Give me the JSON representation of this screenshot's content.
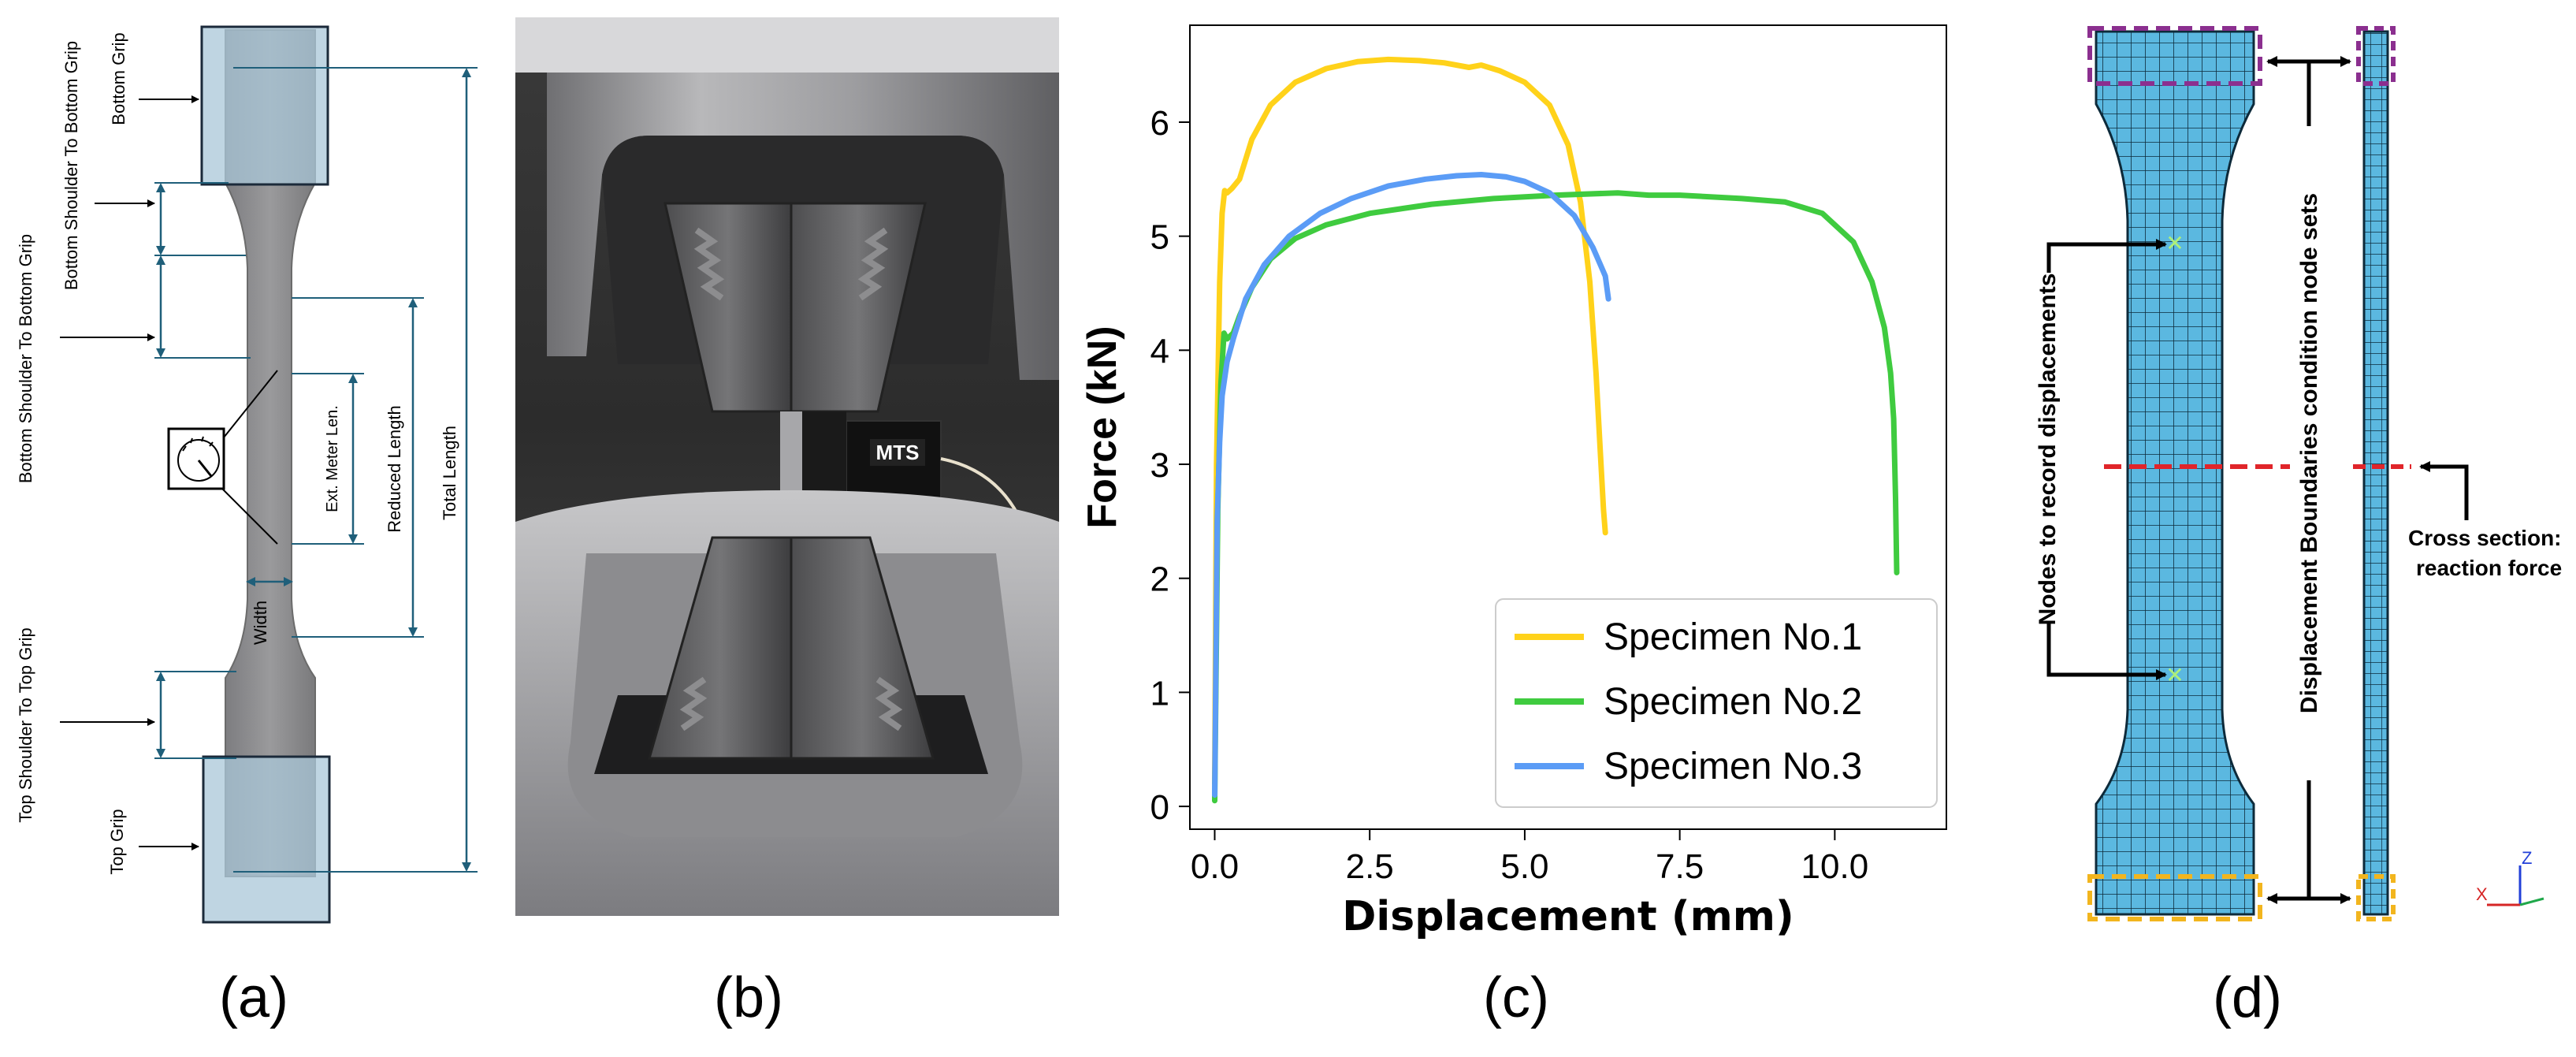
{
  "panel_labels": [
    "(a)",
    "(b)",
    "(c)",
    "(d)"
  ],
  "panel_a": {
    "labels": {
      "bottom_grip": "Bottom Grip",
      "bottom_shoulder_1": "Bottom Shoulder To Bottom Grip",
      "bottom_shoulder_2": "Bottom Shoulder To Bottom Grip",
      "ext_meter": "Ext. Meter Len.",
      "reduced_length": "Reduced Length",
      "total_length": "Total Length",
      "width": "Width",
      "top_shoulder": "Top Shoulder To Top Grip",
      "top_grip": "Top Grip"
    }
  },
  "panel_b": {
    "extensometer_brand": "MTS"
  },
  "panel_d": {
    "nodes_label": "Nodes to record displacements",
    "bc_label": "Displacement Boundaries condition node sets",
    "cross_section_line1": "Cross section:",
    "cross_section_line2": "reaction force",
    "axis_x": "X",
    "axis_z": "Z"
  },
  "chart_data": {
    "type": "line",
    "title": "",
    "xlabel": "Displacement (mm)",
    "ylabel": "Force (kN)",
    "xlim": [
      -0.4,
      11.8
    ],
    "ylim": [
      -0.2,
      6.85
    ],
    "xticks": [
      0.0,
      2.5,
      5.0,
      7.5,
      10.0
    ],
    "xtick_labels": [
      "0.0",
      "2.5",
      "5.0",
      "7.5",
      "10.0"
    ],
    "yticks": [
      0,
      1,
      2,
      3,
      4,
      5,
      6
    ],
    "ytick_labels": [
      "0",
      "1",
      "2",
      "3",
      "4",
      "5",
      "6"
    ],
    "grid": false,
    "legend_position": "lower-right",
    "series": [
      {
        "name": "Specimen No.1",
        "color": "#FFD21A",
        "x": [
          0.0,
          0.03,
          0.08,
          0.12,
          0.16,
          0.2,
          0.28,
          0.4,
          0.6,
          0.9,
          1.3,
          1.8,
          2.3,
          2.8,
          3.3,
          3.7,
          4.1,
          4.3,
          4.6,
          5.0,
          5.4,
          5.7,
          5.9,
          6.05,
          6.15,
          6.22,
          6.27,
          6.3
        ],
        "y": [
          0.2,
          3.0,
          4.6,
          5.2,
          5.4,
          5.38,
          5.42,
          5.5,
          5.85,
          6.15,
          6.35,
          6.47,
          6.53,
          6.55,
          6.54,
          6.52,
          6.48,
          6.5,
          6.45,
          6.35,
          6.15,
          5.8,
          5.3,
          4.6,
          3.8,
          3.1,
          2.6,
          2.4
        ]
      },
      {
        "name": "Specimen No.2",
        "color": "#3FCB3F",
        "x": [
          0.0,
          0.05,
          0.1,
          0.15,
          0.2,
          0.3,
          0.4,
          0.6,
          0.9,
          1.3,
          1.8,
          2.5,
          3.5,
          4.5,
          5.5,
          6.5,
          7.0,
          7.5,
          8.5,
          9.2,
          9.8,
          10.3,
          10.6,
          10.8,
          10.9,
          10.95,
          10.98,
          11.0
        ],
        "y": [
          0.05,
          2.6,
          3.7,
          4.15,
          4.1,
          4.15,
          4.3,
          4.55,
          4.8,
          4.98,
          5.1,
          5.2,
          5.28,
          5.33,
          5.36,
          5.38,
          5.36,
          5.36,
          5.33,
          5.3,
          5.2,
          4.95,
          4.6,
          4.2,
          3.8,
          3.4,
          2.7,
          2.05
        ]
      },
      {
        "name": "Specimen No.3",
        "color": "#5B9CF6",
        "x": [
          0.0,
          0.04,
          0.08,
          0.12,
          0.2,
          0.3,
          0.5,
          0.8,
          1.2,
          1.7,
          2.2,
          2.8,
          3.4,
          3.9,
          4.3,
          4.7,
          5.0,
          5.4,
          5.8,
          6.1,
          6.3,
          6.35
        ],
        "y": [
          0.1,
          2.5,
          3.2,
          3.6,
          3.9,
          4.1,
          4.45,
          4.75,
          5.0,
          5.2,
          5.33,
          5.44,
          5.5,
          5.53,
          5.54,
          5.52,
          5.48,
          5.38,
          5.18,
          4.9,
          4.65,
          4.45
        ]
      }
    ]
  }
}
